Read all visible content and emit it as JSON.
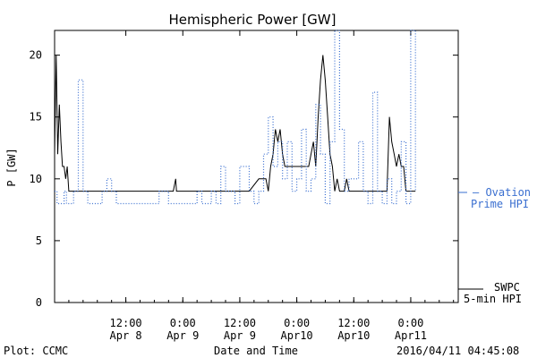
{
  "chart_data": {
    "type": "line",
    "title": "Hemispheric Power [GW]",
    "ylabel": "P [GW]",
    "xlabel": "Date and Time",
    "ylim": [
      0,
      22
    ],
    "xlim_hours": "2016-04-07 21:00 to 2016-04-11 10:00",
    "yticks": [
      0,
      5,
      10,
      15,
      20
    ],
    "ytick_labels": [
      "0",
      "5",
      "10",
      "15",
      "20"
    ],
    "xticks": [
      {
        "line1": "12:00",
        "line2": "Apr 8"
      },
      {
        "line1": "0:00",
        "line2": "Apr 9"
      },
      {
        "line1": "12:00",
        "line2": "Apr 9"
      },
      {
        "line1": "0:00",
        "line2": "Apr10"
      },
      {
        "line1": "12:00",
        "line2": "Apr10"
      },
      {
        "line1": "0:00",
        "line2": "Apr11"
      }
    ],
    "grid": false,
    "series": [
      {
        "name": "SWPC 5-min HPI",
        "style": "solid",
        "color": "#000000",
        "x": [
          "2016-04-07 21:00",
          "2016-04-07 21:20",
          "2016-04-07 21:40",
          "2016-04-07 22:00",
          "2016-04-07 22:20",
          "2016-04-07 22:40",
          "2016-04-07 23:00",
          "2016-04-07 23:20",
          "2016-04-07 23:40",
          "2016-04-08 00:00",
          "2016-04-08 00:20",
          "2016-04-08 00:40",
          "2016-04-08 01:00",
          "2016-04-08 01:30",
          "2016-04-08 02:00",
          "2016-04-08 02:30",
          "2016-04-08 03:00",
          "2016-04-08 04:00",
          "2016-04-08 06:00",
          "2016-04-08 10:00",
          "2016-04-08 14:00",
          "2016-04-08 18:00",
          "2016-04-08 22:00",
          "2016-04-08 22:30",
          "2016-04-08 22:40",
          "2016-04-08 23:00",
          "2016-04-09 03:00",
          "2016-04-09 07:00",
          "2016-04-09 11:00",
          "2016-04-09 14:00",
          "2016-04-09 16:00",
          "2016-04-09 16:30",
          "2016-04-09 17:00",
          "2016-04-09 17:30",
          "2016-04-09 18:00",
          "2016-04-09 18:30",
          "2016-04-09 19:00",
          "2016-04-09 19:30",
          "2016-04-09 20:00",
          "2016-04-09 20:30",
          "2016-04-09 21:00",
          "2016-04-09 21:30",
          "2016-04-09 22:00",
          "2016-04-09 23:00",
          "2016-04-10 00:00",
          "2016-04-10 01:00",
          "2016-04-10 02:00",
          "2016-04-10 02:30",
          "2016-04-10 03:00",
          "2016-04-10 03:30",
          "2016-04-10 04:00",
          "2016-04-10 04:30",
          "2016-04-10 05:00",
          "2016-04-10 05:30",
          "2016-04-10 06:00",
          "2016-04-10 06:30",
          "2016-04-10 07:00",
          "2016-04-10 07:30",
          "2016-04-10 08:00",
          "2016-04-10 08:30",
          "2016-04-10 09:00",
          "2016-04-10 09:30",
          "2016-04-10 10:00",
          "2016-04-10 10:30",
          "2016-04-10 11:00",
          "2016-04-10 11:30",
          "2016-04-10 12:00",
          "2016-04-10 13:00",
          "2016-04-10 14:00",
          "2016-04-10 15:00",
          "2016-04-10 16:00",
          "2016-04-10 17:00",
          "2016-04-10 18:00",
          "2016-04-10 19:00",
          "2016-04-10 19:30",
          "2016-04-10 20:00",
          "2016-04-10 20:30",
          "2016-04-10 21:00",
          "2016-04-10 21:30",
          "2016-04-10 22:00",
          "2016-04-10 22:30",
          "2016-04-10 23:00",
          "2016-04-10 23:30",
          "2016-04-11 00:00",
          "2016-04-11 00:30",
          "2016-04-11 01:00"
        ],
        "values": [
          12,
          20,
          12,
          16,
          13,
          11,
          11,
          10,
          11,
          9,
          9,
          9,
          9,
          9,
          9,
          9,
          9,
          9,
          9,
          9,
          9,
          9,
          9,
          10,
          9,
          9,
          9,
          9,
          9,
          9,
          10,
          10,
          10,
          10,
          9,
          11,
          12,
          14,
          13,
          14,
          12,
          11,
          11,
          11,
          11,
          11,
          11,
          11,
          12,
          13,
          11,
          15,
          18,
          20,
          18,
          15,
          12,
          11,
          9,
          10,
          9,
          9,
          9,
          10,
          9,
          9,
          9,
          9,
          9,
          9,
          9,
          9,
          9,
          9,
          15,
          13,
          12,
          11,
          12,
          11,
          11,
          9,
          9,
          9,
          9,
          9
        ]
      },
      {
        "name": "Ovation Prime HPI",
        "style": "dotted",
        "color": "#3a6fd0",
        "x": [
          "2016-04-07 21:00",
          "2016-04-07 21:30",
          "2016-04-07 22:00",
          "2016-04-07 23:00",
          "2016-04-07 23:30",
          "2016-04-08 00:00",
          "2016-04-08 01:00",
          "2016-04-08 02:00",
          "2016-04-08 03:00",
          "2016-04-08 04:00",
          "2016-04-08 05:00",
          "2016-04-08 07:00",
          "2016-04-08 08:00",
          "2016-04-08 09:00",
          "2016-04-08 10:00",
          "2016-04-08 12:00",
          "2016-04-08 13:00",
          "2016-04-08 14:00",
          "2016-04-08 15:00",
          "2016-04-08 16:00",
          "2016-04-08 18:00",
          "2016-04-08 19:00",
          "2016-04-08 20:00",
          "2016-04-08 21:00",
          "2016-04-08 22:00",
          "2016-04-09 00:00",
          "2016-04-09 01:00",
          "2016-04-09 02:00",
          "2016-04-09 03:00",
          "2016-04-09 04:00",
          "2016-04-09 06:00",
          "2016-04-09 07:00",
          "2016-04-09 08:00",
          "2016-04-09 09:00",
          "2016-04-09 11:00",
          "2016-04-09 12:00",
          "2016-04-09 14:00",
          "2016-04-09 15:00",
          "2016-04-09 16:00",
          "2016-04-09 17:00",
          "2016-04-09 18:00",
          "2016-04-09 19:00",
          "2016-04-09 20:00",
          "2016-04-09 21:00",
          "2016-04-09 22:00",
          "2016-04-09 23:00",
          "2016-04-10 00:00",
          "2016-04-10 01:00",
          "2016-04-10 02:00",
          "2016-04-10 03:00",
          "2016-04-10 04:00",
          "2016-04-10 05:00",
          "2016-04-10 06:00",
          "2016-04-10 07:00",
          "2016-04-10 08:00",
          "2016-04-10 09:00",
          "2016-04-10 10:00",
          "2016-04-10 11:00",
          "2016-04-10 12:00",
          "2016-04-10 13:00",
          "2016-04-10 14:00",
          "2016-04-10 15:00",
          "2016-04-10 16:00",
          "2016-04-10 17:00",
          "2016-04-10 18:00",
          "2016-04-10 19:00",
          "2016-04-10 20:00",
          "2016-04-10 21:00",
          "2016-04-10 22:00",
          "2016-04-10 23:00",
          "2016-04-11 00:00",
          "2016-04-11 01:00"
        ],
        "values": [
          9,
          8,
          8,
          9,
          8,
          8,
          9,
          18,
          9,
          8,
          8,
          9,
          10,
          9,
          8,
          8,
          8,
          8,
          8,
          8,
          8,
          9,
          9,
          8,
          8,
          8,
          8,
          8,
          9,
          8,
          9,
          8,
          11,
          9,
          8,
          11,
          9,
          8,
          9,
          12,
          15,
          11,
          13,
          10,
          13,
          9,
          10,
          14,
          9,
          10,
          16,
          12,
          8,
          13,
          22,
          14,
          9,
          10,
          10,
          13,
          9,
          8,
          17,
          9,
          8,
          10,
          8,
          9,
          13,
          8,
          22,
          9
        ]
      }
    ]
  },
  "legend": {
    "ovation_label_line1": "— Ovation",
    "ovation_label_line2": "Prime HPI",
    "swpc_label_line1": "SWPC",
    "swpc_label_line2": "5-min HPI"
  },
  "footer": {
    "left": "Plot: CCMC",
    "center": "Date and Time",
    "right": "2016/04/11 04:45:08"
  },
  "colors": {
    "ovation": "#3a6fd0",
    "swpc": "#000000"
  }
}
